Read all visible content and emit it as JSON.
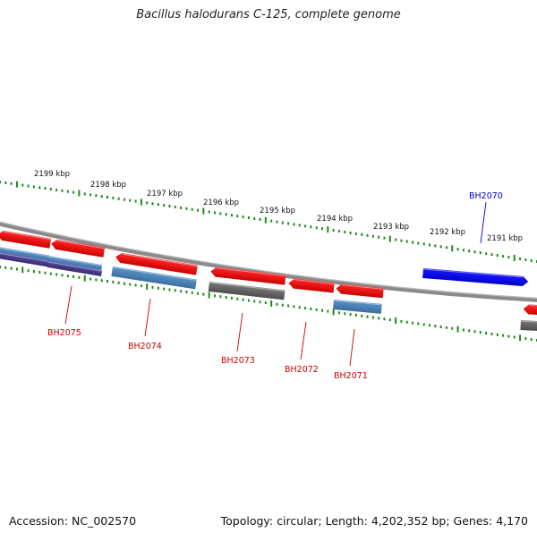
{
  "title": "Bacillus halodurans C-125, complete genome",
  "footer": {
    "accession": "Accession: NC_002570",
    "topology": "Topology: circular; Length: 4,202,352 bp; Genes: 4,170"
  },
  "colors": {
    "backbone": "#777777",
    "forward_gene": "#ff0000",
    "selected_gene": "#0000ee",
    "blue_feature": "#4a84bb",
    "gray_feature": "#666666",
    "purple_feature": "#4c3f8c",
    "tick_green": "#1e8a1e",
    "label_red": "#cc0000",
    "label_blue": "#0000cc"
  },
  "scale_labels": [
    "2199 kbp",
    "2198 kbp",
    "2197 kbp",
    "2196 kbp",
    "2195 kbp",
    "2194 kbp",
    "2193 kbp",
    "2192 kbp",
    "2191 kbp"
  ],
  "genes": [
    {
      "label": "BH2075",
      "color": "label_red"
    },
    {
      "label": "BH2074",
      "color": "label_red"
    },
    {
      "label": "BH2073",
      "color": "label_red"
    },
    {
      "label": "BH2072",
      "color": "label_red"
    },
    {
      "label": "BH2071",
      "color": "label_red"
    },
    {
      "label": "BH2070",
      "color": "label_blue"
    }
  ]
}
